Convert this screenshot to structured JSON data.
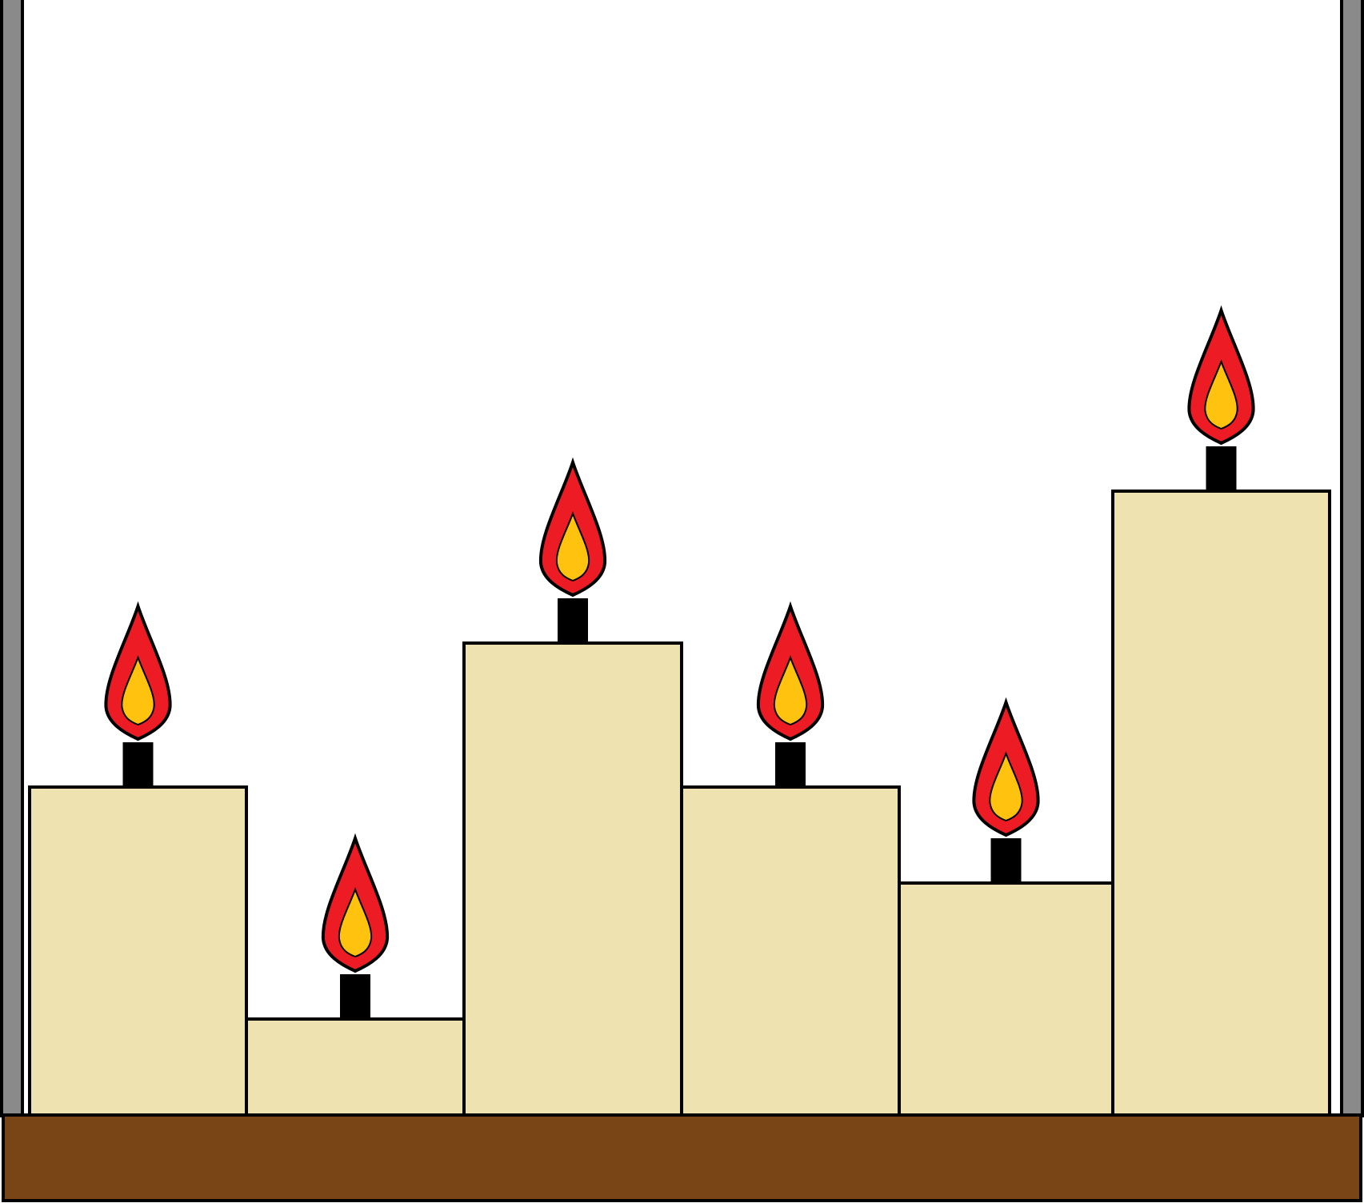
{
  "scene": {
    "description_key": "candles-on-tray",
    "colors": {
      "background": "#ffffff",
      "post": "#8a8a8a",
      "tray": "#794416",
      "wax": "#eee3b0",
      "wick": "#000000",
      "flame_outer": "#ed1c24",
      "flame_inner": "#ffc20e",
      "outline": "#000000"
    },
    "candles": [
      {
        "id": "candle-1",
        "relative_height": 0.41
      },
      {
        "id": "candle-2",
        "relative_height": 0.12
      },
      {
        "id": "candle-3",
        "relative_height": 0.59
      },
      {
        "id": "candle-4",
        "relative_height": 0.41
      },
      {
        "id": "candle-5",
        "relative_height": 0.29
      },
      {
        "id": "candle-6",
        "relative_height": 0.78
      }
    ]
  }
}
